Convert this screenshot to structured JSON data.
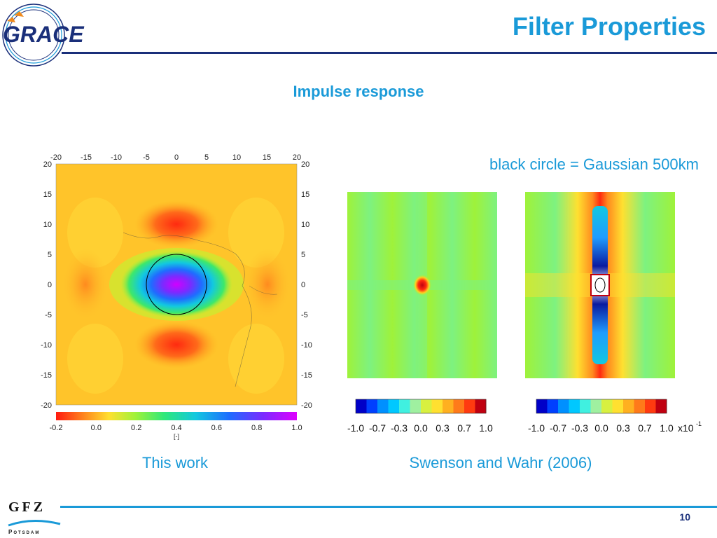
{
  "slide": {
    "title": "Filter Properties",
    "subtitle": "Impulse response",
    "note": "black circle = Gaussian 500km",
    "page_number": "10"
  },
  "logos": {
    "grace_text": "GRACE",
    "gfz_text": "GFZ",
    "gfz_sub": "Potsdam"
  },
  "figures": {
    "left": {
      "caption": "This work",
      "x_ticks": [
        "-20",
        "-15",
        "-10",
        "-5",
        "0",
        "5",
        "10",
        "15",
        "20"
      ],
      "y_ticks": [
        "20",
        "15",
        "10",
        "5",
        "0",
        "-5",
        "-10",
        "-15",
        "-20"
      ],
      "colorbar_ticks": [
        "-0.2",
        "0.0",
        "0.2",
        "0.4",
        "0.6",
        "0.8",
        "1.0"
      ],
      "colorbar_unit": "[-]"
    },
    "right": {
      "caption": "Swenson and Wahr (2006)",
      "colorbar_a_ticks": [
        "-1.0",
        "-0.7",
        "-0.3",
        "0.0",
        "0.3",
        "0.7",
        "1.0"
      ],
      "colorbar_b_ticks": [
        "-1.0",
        "-0.7",
        "-0.3",
        "0.0",
        "0.3",
        "0.7",
        "1.0"
      ],
      "colorbar_b_scale": "x10",
      "colorbar_b_exp": "-1"
    }
  },
  "colors": {
    "accent": "#1a9ad8",
    "navy": "#1a2f7a"
  }
}
